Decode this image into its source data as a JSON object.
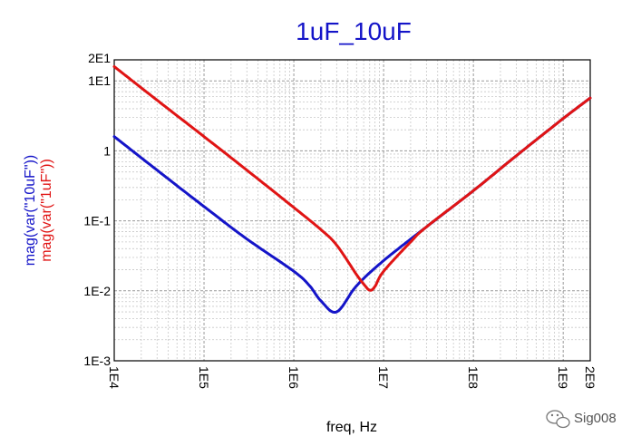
{
  "chart_data": {
    "type": "line",
    "title": "1uF_10uF",
    "xlabel": "freq, Hz",
    "x_scale": "log",
    "y_scale": "log",
    "xlim": [
      10000,
      2000000000
    ],
    "ylim": [
      0.001,
      20
    ],
    "x_ticks": [
      {
        "value": 10000,
        "label": "1E4"
      },
      {
        "value": 100000,
        "label": "1E5"
      },
      {
        "value": 1000000,
        "label": "1E6"
      },
      {
        "value": 10000000,
        "label": "1E7"
      },
      {
        "value": 100000000,
        "label": "1E8"
      },
      {
        "value": 1000000000,
        "label": "1E9"
      },
      {
        "value": 2000000000,
        "label": "2E9"
      }
    ],
    "y_ticks": [
      {
        "value": 20,
        "label": "2E1"
      },
      {
        "value": 10,
        "label": "1E1"
      },
      {
        "value": 1,
        "label": "1"
      },
      {
        "value": 0.1,
        "label": "1E-1"
      },
      {
        "value": 0.01,
        "label": "1E-2"
      },
      {
        "value": 0.001,
        "label": "1E-3"
      }
    ],
    "grid": true,
    "series": [
      {
        "name": "mag(var(\"10uF\"))",
        "color": "#1414c8",
        "x": [
          10000,
          30000,
          100000,
          300000,
          1000000,
          1500000,
          2000000,
          3000000,
          5000000,
          10000000,
          30000000,
          100000000,
          300000000,
          1000000000,
          2000000000
        ],
        "y": [
          1.6,
          0.53,
          0.16,
          0.055,
          0.019,
          0.0118,
          0.0072,
          0.005,
          0.0118,
          0.027,
          0.082,
          0.27,
          0.85,
          2.9,
          5.7
        ]
      },
      {
        "name": "mag(var(\"1uF\"))",
        "color": "#e01414",
        "x": [
          10000,
          30000,
          100000,
          300000,
          1000000,
          2000000,
          3000000,
          5000000,
          6000000,
          7000000,
          8000000,
          10000000,
          20000000,
          30000000,
          100000000,
          300000000,
          1000000000,
          2000000000
        ],
        "y": [
          16,
          5.3,
          1.6,
          0.53,
          0.155,
          0.075,
          0.045,
          0.017,
          0.0125,
          0.0102,
          0.0115,
          0.019,
          0.05,
          0.082,
          0.27,
          0.85,
          2.9,
          5.7
        ]
      }
    ]
  },
  "watermark": {
    "text": "Sig008",
    "icon": "wechat-bubble-icon"
  }
}
